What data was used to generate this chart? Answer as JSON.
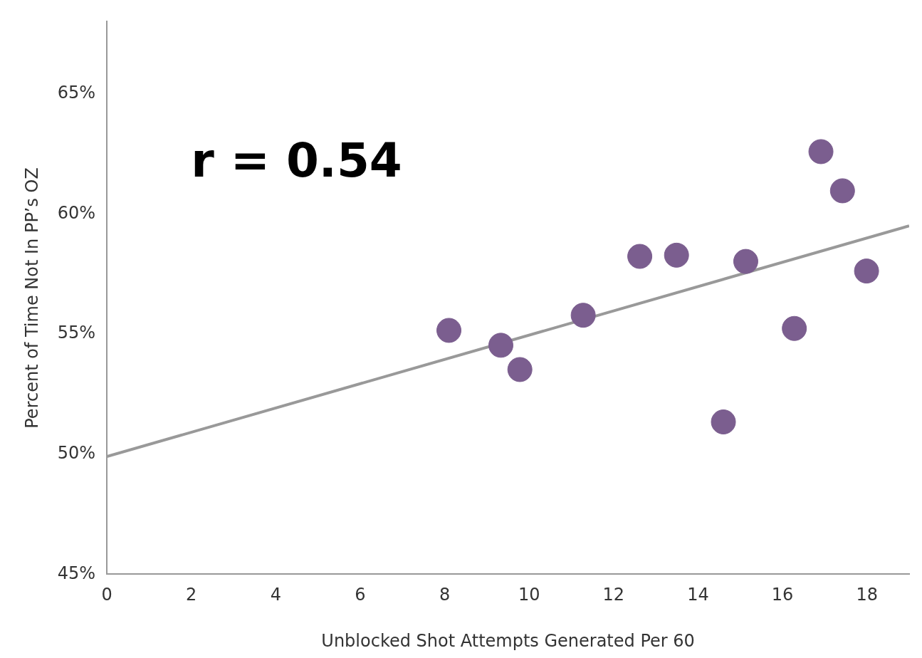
{
  "chart_data": {
    "type": "scatter",
    "xlabel": "Unblocked Shot Attempts Generated Per 60",
    "ylabel": "Percent of Time Not In PP’s OZ",
    "annotations": [
      "r = 0.54"
    ],
    "series": [
      {
        "type": "scatter",
        "marker": "circle",
        "color": "#7b5e8f",
        "x": [
          8.1,
          9.33,
          9.78,
          11.28,
          12.62,
          13.49,
          14.6,
          15.13,
          16.28,
          16.91,
          17.42,
          17.99
        ],
        "values": [
          55.15,
          54.53,
          53.52,
          55.78,
          58.23,
          58.28,
          51.34,
          58.02,
          55.23,
          62.59,
          60.96,
          57.62
        ]
      },
      {
        "type": "line",
        "marker": "none",
        "color": "#999999",
        "x": [
          0,
          19
        ],
        "values": [
          49.9,
          59.5
        ]
      }
    ],
    "xlim": [
      0,
      19
    ],
    "xticks": [
      0,
      2,
      4,
      6,
      8,
      10,
      12,
      14,
      16,
      18
    ],
    "ylim": [
      45,
      68
    ],
    "yticks": [
      {
        "value": 45,
        "label": "45%"
      },
      {
        "value": 50,
        "label": "50%"
      },
      {
        "value": 55,
        "label": "55%"
      },
      {
        "value": 60,
        "label": "60%"
      },
      {
        "value": 65,
        "label": "65%"
      }
    ],
    "grid": false,
    "legend": false,
    "line_style": "solid"
  }
}
